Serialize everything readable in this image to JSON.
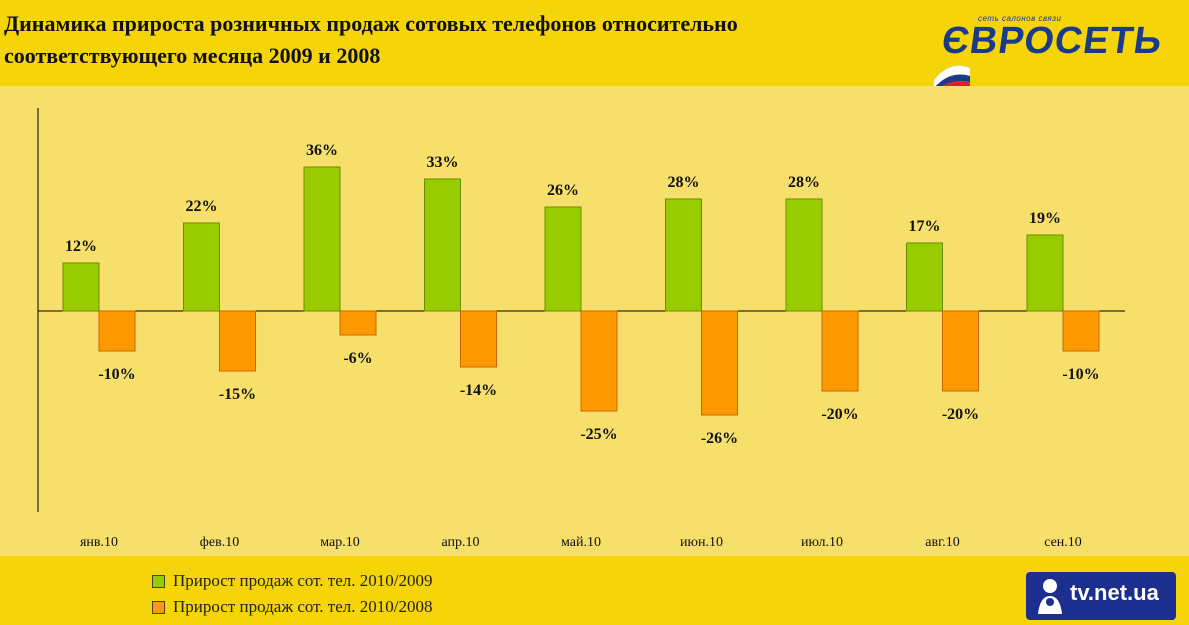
{
  "header": {
    "title_line1": "Динамика прироста розничных продаж сотовых телефонов относительно",
    "title_line2": "соответствующего месяца 2009 и 2008"
  },
  "logo": {
    "tagline": "сеть салонов связи",
    "name": "ЄВРОСЕТЬ"
  },
  "watermark": {
    "text": "tv.net.ua"
  },
  "colors": {
    "series1": "#99cc00",
    "series2": "#ff9900",
    "background": "#f5d40a",
    "plot_background": "#f7df6b"
  },
  "chart_data": {
    "type": "bar",
    "categories": [
      "янв.10",
      "фев.10",
      "мар.10",
      "апр.10",
      "май.10",
      "июн.10",
      "июл.10",
      "авг.10",
      "сен.10"
    ],
    "series": [
      {
        "name": "Прирост продаж сот. тел. 2010/2009",
        "values": [
          12,
          22,
          36,
          33,
          26,
          28,
          28,
          17,
          19
        ]
      },
      {
        "name": "Прирост продаж сот. тел. 2010/2008",
        "values": [
          -10,
          -15,
          -6,
          -14,
          -25,
          -26,
          -20,
          -20,
          -10
        ]
      }
    ],
    "data_labels": [
      [
        "12%",
        "22%",
        "36%",
        "33%",
        "26%",
        "28%",
        "28%",
        "17%",
        "19%"
      ],
      [
        "-10%",
        "-15%",
        "-6%",
        "-14%",
        "-25%",
        "-26%",
        "-20%",
        "-20%",
        "-10%"
      ]
    ],
    "ylim": [
      -50,
      50
    ],
    "grid": false,
    "legend_position": "bottom-left"
  }
}
